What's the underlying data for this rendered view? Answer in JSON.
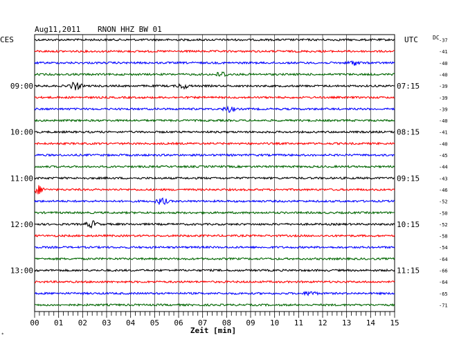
{
  "header": {
    "date": "Aug11,2011",
    "station": "RNON HHZ BW 01"
  },
  "left_label": "CES",
  "right_label": "UTC",
  "dc_label": "DC",
  "chart_data": {
    "type": "line",
    "title": "Aug11,2011   RNON HHZ BW 01",
    "xlabel": "Zeit [min]",
    "xlim": [
      0,
      15
    ],
    "x_ticks": [
      "00",
      "01",
      "02",
      "03",
      "04",
      "05",
      "06",
      "07",
      "08",
      "09",
      "10",
      "11",
      "12",
      "13",
      "14",
      "15"
    ],
    "grid": true,
    "trace_colors": [
      "#000000",
      "#ff0000",
      "#0000ff",
      "#006600"
    ],
    "traces": 24,
    "left_time_labels": [
      {
        "trace": 4,
        "text": "09:00"
      },
      {
        "trace": 8,
        "text": "10:00"
      },
      {
        "trace": 12,
        "text": "11:00"
      },
      {
        "trace": 16,
        "text": "12:00"
      },
      {
        "trace": 20,
        "text": "13:00"
      }
    ],
    "right_time_labels": [
      {
        "trace": 4,
        "text": "07:15"
      },
      {
        "trace": 8,
        "text": "08:15"
      },
      {
        "trace": 12,
        "text": "09:15"
      },
      {
        "trace": 16,
        "text": "10:15"
      },
      {
        "trace": 20,
        "text": "11:15"
      }
    ],
    "dc_offsets": [
      "-37",
      "-41",
      "-40",
      "-40",
      "-39",
      "-39",
      "-39",
      "-40",
      "-41",
      "-40",
      "-45",
      "-44",
      "-43",
      "-46",
      "-52",
      "-50",
      "-52",
      "-58",
      "-54",
      "-64",
      "-66",
      "-64",
      "-65",
      "-71"
    ],
    "events": [
      {
        "trace": 3,
        "minute": 7.8,
        "amp": 1.6
      },
      {
        "trace": 4,
        "minute": 1.7,
        "amp": 2.2
      },
      {
        "trace": 4,
        "minute": 6.2,
        "amp": 1.4
      },
      {
        "trace": 6,
        "minute": 8.1,
        "amp": 1.5
      },
      {
        "trace": 13,
        "minute": 0.15,
        "amp": 2.4
      },
      {
        "trace": 14,
        "minute": 5.3,
        "amp": 2.0
      },
      {
        "trace": 16,
        "minute": 2.4,
        "amp": 1.9
      },
      {
        "trace": 2,
        "minute": 13.3,
        "amp": 1.3
      },
      {
        "trace": 22,
        "minute": 11.5,
        "amp": 1.2
      }
    ]
  }
}
